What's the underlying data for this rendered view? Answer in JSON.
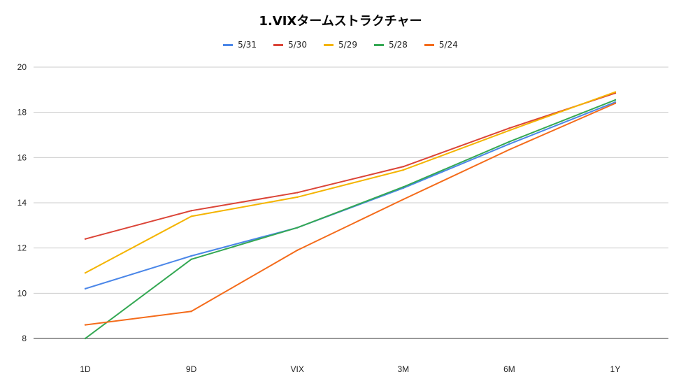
{
  "chart_data": {
    "type": "line",
    "title": "1.VIXタームストラクチャー",
    "categories": [
      "1D",
      "9D",
      "VIX",
      "3M",
      "6M",
      "1Y"
    ],
    "ylim": [
      8,
      20
    ],
    "yticks": [
      8,
      10,
      12,
      14,
      16,
      18,
      20
    ],
    "grid": true,
    "legend_position": "top",
    "series": [
      {
        "name": "5/31",
        "color": "#4a86e8",
        "values": [
          10.2,
          11.65,
          12.9,
          14.65,
          16.6,
          18.45
        ]
      },
      {
        "name": "5/30",
        "color": "#db4437",
        "values": [
          12.4,
          13.65,
          14.45,
          15.6,
          17.3,
          18.85
        ]
      },
      {
        "name": "5/29",
        "color": "#f4b400",
        "values": [
          10.9,
          13.4,
          14.25,
          15.45,
          17.2,
          18.9
        ]
      },
      {
        "name": "5/28",
        "color": "#34a853",
        "values": [
          8.0,
          11.5,
          12.9,
          14.7,
          16.7,
          18.55
        ]
      },
      {
        "name": "5/24",
        "color": "#f46b1a",
        "values": [
          8.6,
          9.2,
          11.9,
          14.15,
          16.35,
          18.4
        ]
      }
    ]
  }
}
